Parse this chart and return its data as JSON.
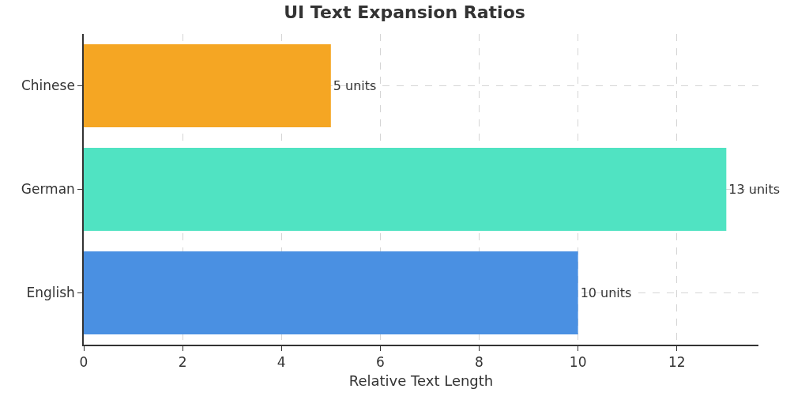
{
  "chart_data": {
    "type": "bar",
    "title": "UI Text Expansion Ratios",
    "xlabel": "Relative Text Length",
    "orientation": "horizontal",
    "categories": [
      "Chinese",
      "German",
      "English"
    ],
    "values": [
      5,
      13,
      10
    ],
    "colors": [
      "#f5a623",
      "#50e3c2",
      "#4a90e2"
    ],
    "value_labels": [
      "5 units",
      "13 units",
      "10 units"
    ],
    "xlim": [
      0,
      13.65
    ],
    "xticks": [
      0,
      2,
      4,
      6,
      8,
      10,
      12
    ],
    "grid": true,
    "legend": false
  }
}
